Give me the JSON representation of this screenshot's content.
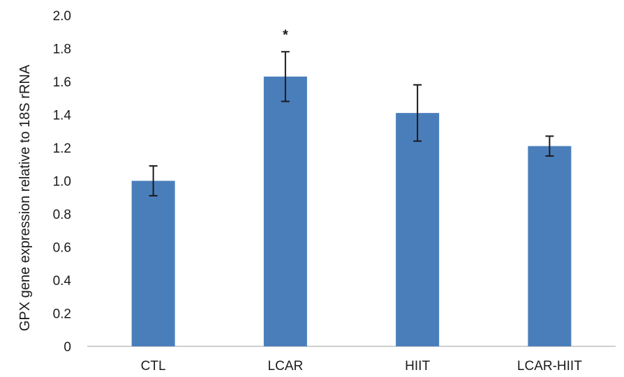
{
  "chart_data": {
    "type": "bar",
    "title": "",
    "xlabel": "",
    "ylabel": "GPX gene expression relative to 18S rRNA",
    "ylim": [
      0,
      2.0
    ],
    "yticks": [
      "0",
      "0.2",
      "0.4",
      "0.6",
      "0.8",
      "1.0",
      "1.2",
      "1.4",
      "1.6",
      "1.8",
      "2.0"
    ],
    "categories": [
      "CTL",
      "LCAR",
      "HIIT",
      "LCAR-HIIT"
    ],
    "values": [
      1.0,
      1.63,
      1.41,
      1.21
    ],
    "errors": [
      0.09,
      0.15,
      0.17,
      0.06
    ],
    "annotations": [
      "",
      "*",
      "",
      ""
    ],
    "grid": false,
    "legend": "none",
    "colors": {
      "bar": "#4a7ebb",
      "error_bar": "#1a1a1a",
      "axis": "#bfbfbf"
    }
  }
}
